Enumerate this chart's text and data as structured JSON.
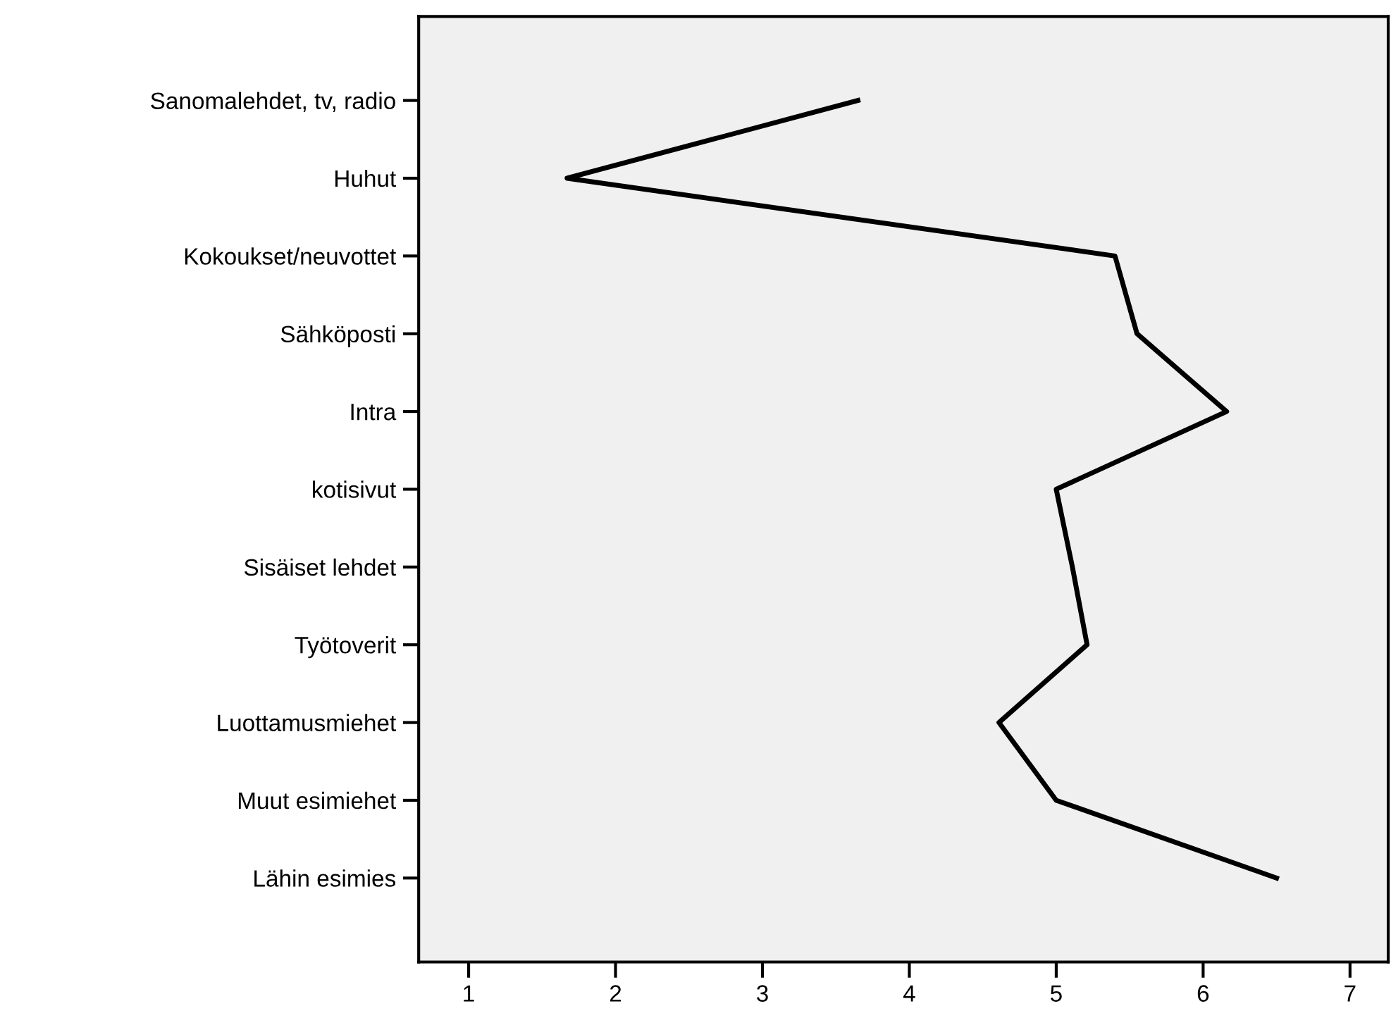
{
  "chart_data": {
    "type": "line",
    "orientation": "horizontal",
    "categories": [
      "Sanomalehdet, tv, radio",
      "Huhut",
      "Kokoukset/neuvottet",
      "Sähköposti",
      "Intra",
      "kotisivut",
      "Sisäiset lehdet",
      "Työtoverit",
      "Luottamusmiehet",
      "Muut esimiehet",
      "Lähin esimies"
    ],
    "series": [
      {
        "color": "#000000",
        "values": [
          3.65,
          1.67,
          5.4,
          5.55,
          6.16,
          5.0,
          5.11,
          5.21,
          4.61,
          5.0,
          6.5
        ]
      }
    ],
    "xlim": [
      0.66,
      7.26
    ],
    "xticks": [
      1,
      2,
      3,
      4,
      5,
      6,
      7
    ],
    "grid": false,
    "marker": "none",
    "line_style": "solid"
  }
}
